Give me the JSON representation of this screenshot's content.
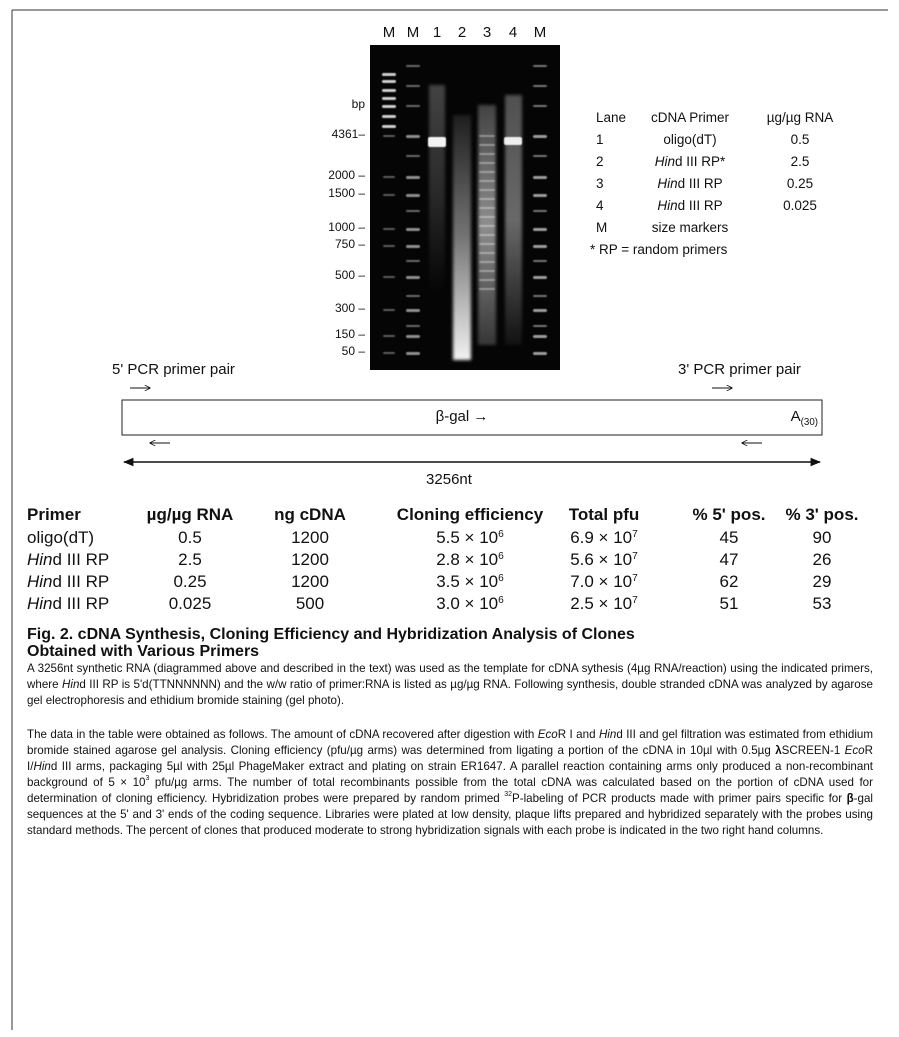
{
  "gel": {
    "lane_labels": [
      "M",
      "M",
      "1",
      "2",
      "3",
      "4",
      "M"
    ],
    "size_unit": "bp",
    "size_markers": [
      "4361–",
      "2000 –",
      "1500 –",
      "1000 –",
      "750 –",
      "500 –",
      "300 –",
      "150 –",
      "50 –"
    ]
  },
  "legend": {
    "headers": [
      "Lane",
      "cDNA Primer",
      "µg/µg RNA"
    ],
    "rows": [
      {
        "lane": "1",
        "primer": [
          "oligo(dT)"
        ],
        "ratio": "0.5"
      },
      {
        "lane": "2",
        "primer": [
          "Hin",
          "d III RP*"
        ],
        "ratio": "2.5"
      },
      {
        "lane": "3",
        "primer": [
          "Hin",
          "d III RP"
        ],
        "ratio": "0.25"
      },
      {
        "lane": "4",
        "primer": [
          "Hin",
          "d III RP"
        ],
        "ratio": "0.025"
      },
      {
        "lane": "M",
        "primer": [
          "size markers"
        ]
      }
    ],
    "footnote": "* RP = random primers"
  },
  "diagram": {
    "left_primer": "5' PCR primer pair",
    "right_primer": "3' PCR primer pair",
    "gene": "β-gal →",
    "tail": [
      "A",
      "(30)"
    ],
    "length": "3256nt"
  },
  "table": {
    "headers": [
      "Primer",
      "µg/µg RNA",
      "ng cDNA",
      "Cloning efficiency",
      "Total pfu",
      "% 5' pos.",
      "% 3' pos."
    ],
    "rows": [
      [
        [
          "oligo(dT)"
        ],
        "0.5",
        "1200",
        [
          "5.5 × 10",
          "6"
        ],
        [
          "6.9 × 10",
          "7"
        ],
        "45",
        "90"
      ],
      [
        [
          "Hin",
          "d III RP"
        ],
        "2.5",
        "1200",
        [
          "2.8 × 10",
          "6"
        ],
        [
          "5.6 × 10",
          "7"
        ],
        "47",
        "26"
      ],
      [
        [
          "Hin",
          "d III RP"
        ],
        "0.25",
        "1200",
        [
          "3.5 × 10",
          "6"
        ],
        [
          "7.0 × 10",
          "7"
        ],
        "62",
        "29"
      ],
      [
        [
          "Hin",
          "d III RP"
        ],
        "0.025",
        "500",
        [
          "3.0 × 10",
          "6"
        ],
        [
          "2.5 × 10",
          "7"
        ],
        "51",
        "53"
      ]
    ]
  },
  "caption": {
    "title_lines": [
      "Fig. 2. cDNA Synthesis, Cloning Efficiency and Hybridization Analysis of Clones",
      "Obtained with Various Primers"
    ],
    "paragraphs": [
      [
        "A 3256nt synthetic RNA (diagrammed above and described in the text) was used as the template for cDNA sythesis (4µg RNA/reaction) using the indicated primers, where ",
        "Hin",
        "d III RP is 5'd(TTNNNNNN) and the w/w ratio of primer:RNA is listed as µg/µg RNA. Following synthesis, double stranded cDNA was analyzed by agarose gel electrophoresis and ethidium bromide staining (gel photo)."
      ],
      [
        "The data in the table were obtained as follows. The amount of cDNA recovered after digestion with ",
        "Eco",
        "R I and ",
        "Hin",
        "d III and gel filtration was estimated from ethidium bromide stained agarose gel analysis. Cloning efficiency (pfu/µg arms) was determined from ligating a portion of the cDNA in 10µl with 0.5µg ",
        "λ",
        "SCREEN-1 ",
        "Eco",
        "R I/",
        "Hin",
        "d III arms, packaging 5µl with 25µl PhageMaker extract and plating on strain ER1647. A parallel reaction containing arms only produced a non-recombinant background of 5 × 10",
        "3",
        " pfu/µg arms. The number of total recombinants possible from the total cDNA was calculated based on the portion of cDNA used for determination of cloning efficiency. Hybridization probes were prepared by random primed ",
        "32",
        "P-labeling of PCR products made with primer pairs specific for ",
        "β",
        "-gal sequences at the 5' and 3' ends of the coding sequence. Libraries were plated at low density, plaque lifts prepared and hybridized separately with the probes using standard methods. The percent of clones that produced moderate to strong hybridization signals with each probe is indicated in the two right hand columns."
      ]
    ]
  }
}
